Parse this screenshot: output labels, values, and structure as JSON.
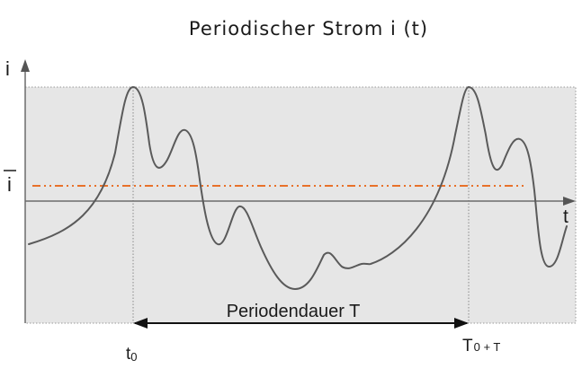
{
  "diagram": {
    "title": "Periodischer Strom i (t)",
    "y_axis_label": "i",
    "x_axis_label": "t",
    "mean_label": "i",
    "period_label": "Periodendauer T",
    "t0_main": "t",
    "t0_sub": "0",
    "t1_main": "T",
    "t1_sub": "0 + T",
    "colors": {
      "background_band": "#e6e6e6",
      "curve": "#5a5a5a",
      "mean_line": "#e8712a",
      "axis": "#6b6b6b"
    }
  }
}
